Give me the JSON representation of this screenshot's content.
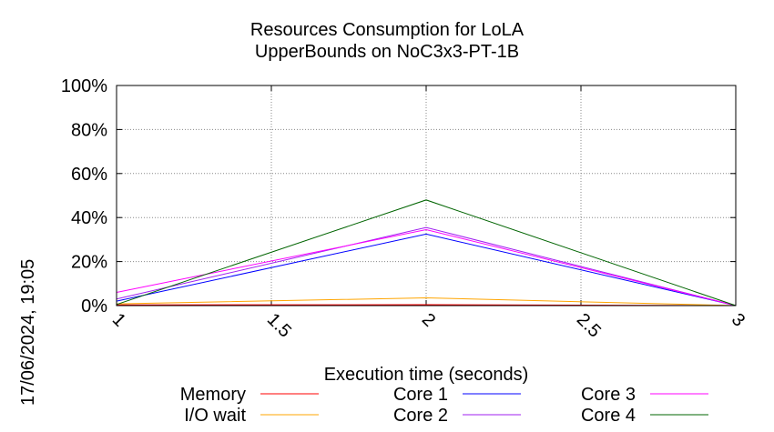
{
  "chart_data": {
    "type": "line",
    "title": [
      "Resources Consumption for LoLA",
      "UpperBounds on NoC3x3-PT-1B"
    ],
    "xlabel": "Execution time (seconds)",
    "ylabel": "",
    "xlim": [
      1,
      3
    ],
    "ylim": [
      0,
      100
    ],
    "x_ticks": [
      "1",
      "1.5",
      "2",
      "2.5",
      "3"
    ],
    "y_ticks": [
      "0%",
      "20%",
      "40%",
      "60%",
      "80%",
      "100%"
    ],
    "grid": true,
    "legend_position": "bottom",
    "x": [
      1,
      2,
      3
    ],
    "series": [
      {
        "name": "Memory",
        "color": "#ff0000",
        "values": [
          0.3,
          0.4,
          0
        ]
      },
      {
        "name": "I/O wait",
        "color": "#ffa500",
        "values": [
          0.8,
          3.5,
          0
        ]
      },
      {
        "name": "Core 1",
        "color": "#0000ff",
        "values": [
          2,
          32.5,
          0
        ]
      },
      {
        "name": "Core 2",
        "color": "#a020f0",
        "values": [
          3,
          35.5,
          0
        ]
      },
      {
        "name": "Core 3",
        "color": "#ff00ff",
        "values": [
          6,
          34.5,
          0
        ]
      },
      {
        "name": "Core 4",
        "color": "#006400",
        "values": [
          0.5,
          48,
          0
        ]
      }
    ]
  },
  "date_stamp": "17/06/2024, 19:05"
}
